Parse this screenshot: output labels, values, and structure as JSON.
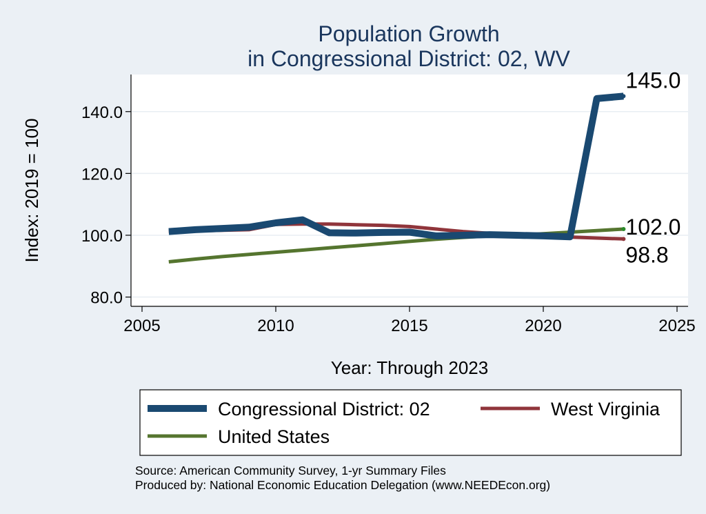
{
  "chart_data": {
    "type": "line",
    "title_lines": [
      "Population Growth",
      "in Congressional District: 02, WV"
    ],
    "xlabel": "Year: Through 2023",
    "ylabel": "Index: 2019 = 100",
    "xlim": [
      2005,
      2025
    ],
    "ylim": [
      77,
      152
    ],
    "xticks": [
      2005,
      2010,
      2015,
      2020,
      2025
    ],
    "yticks": [
      80.0,
      100.0,
      120.0,
      140.0
    ],
    "ytick_labels": [
      "80.0",
      "100.0",
      "120.0",
      "140.0"
    ],
    "grid": true,
    "legend_position": "bottom",
    "series": [
      {
        "name": "Congressional District: 02",
        "color": "#1a4971",
        "x": [
          2006,
          2007,
          2008,
          2009,
          2010,
          2011,
          2012,
          2013,
          2014,
          2015,
          2016,
          2017,
          2018,
          2019,
          2020,
          2021,
          2022,
          2023
        ],
        "y": [
          101.2,
          101.8,
          102.2,
          102.6,
          104.0,
          105.0,
          100.8,
          100.7,
          100.9,
          101.0,
          99.8,
          100.0,
          100.2,
          100.0,
          99.8,
          99.5,
          144.2,
          145.0
        ],
        "end_label": "145.0"
      },
      {
        "name": "West Virginia",
        "color": "#90353b",
        "x": [
          2006,
          2007,
          2008,
          2009,
          2010,
          2011,
          2012,
          2013,
          2014,
          2015,
          2016,
          2017,
          2018,
          2019,
          2020,
          2021,
          2022,
          2023
        ],
        "y": [
          101.2,
          101.4,
          101.6,
          101.8,
          103.5,
          103.6,
          103.6,
          103.4,
          103.2,
          102.8,
          102.0,
          101.2,
          100.6,
          100.0,
          99.8,
          99.4,
          99.1,
          98.8
        ],
        "end_label": "98.8"
      },
      {
        "name": "United States",
        "color": "#55752f",
        "x": [
          2006,
          2007,
          2008,
          2009,
          2010,
          2011,
          2012,
          2013,
          2014,
          2015,
          2016,
          2017,
          2018,
          2019,
          2020,
          2021,
          2022,
          2023
        ],
        "y": [
          91.4,
          92.3,
          93.1,
          93.8,
          94.5,
          95.2,
          95.9,
          96.6,
          97.3,
          98.0,
          98.7,
          99.3,
          99.8,
          100.0,
          100.5,
          101.0,
          101.5,
          102.0
        ],
        "end_label": "102.0"
      }
    ]
  },
  "source_lines": [
    "Source: American Community Survey, 1-yr Summary Files",
    "Produced by: National Economic Education Delegation (www.NEEDEcon.org)"
  ]
}
